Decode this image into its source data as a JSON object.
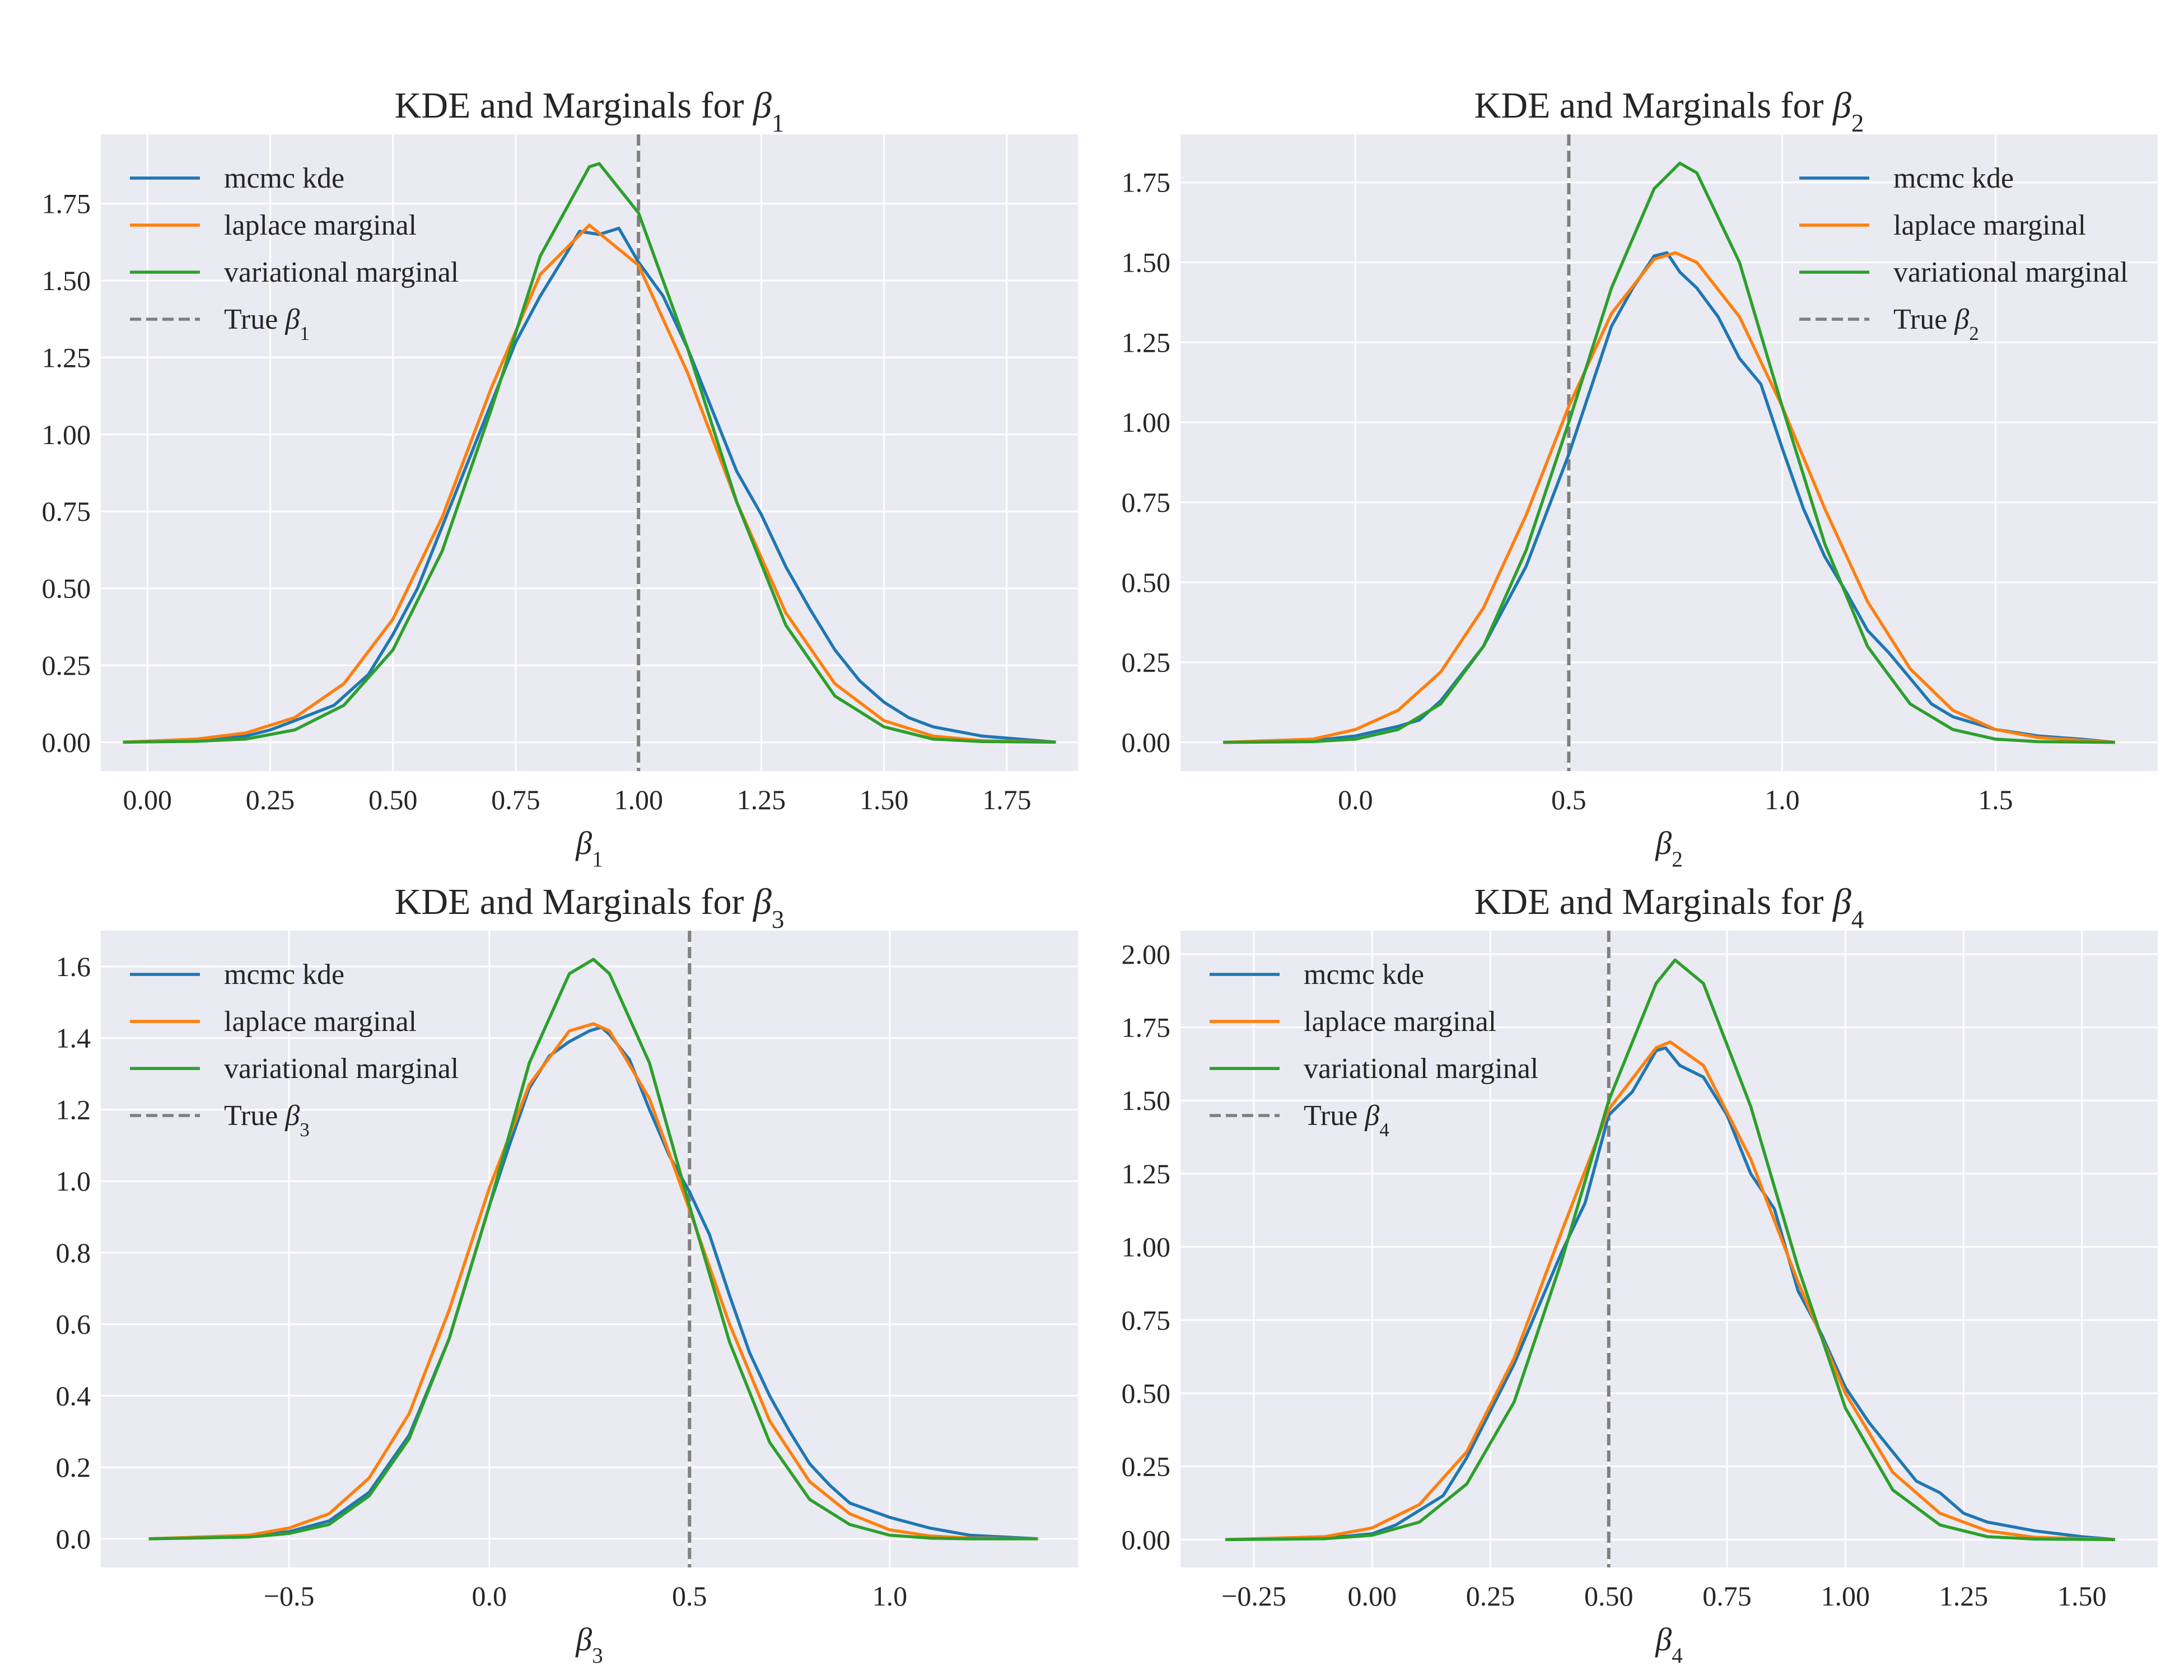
{
  "figure": {
    "background": "#ffffff",
    "axes_facecolor": "#eaeaf2",
    "grid_color": "#ffffff"
  },
  "chart_data": [
    {
      "type": "line",
      "title": "KDE and Marginals for β1",
      "title_parts": {
        "prefix": "KDE and Marginals for ",
        "symbol": "β",
        "subscript": "1"
      },
      "xlabel": "β1",
      "xlabel_parts": {
        "symbol": "β",
        "subscript": "1"
      },
      "ylabel": "",
      "xlim": [
        -0.095,
        1.895
      ],
      "ylim": [
        -0.094,
        1.975
      ],
      "xticks": [
        0.0,
        0.25,
        0.5,
        0.75,
        1.0,
        1.25,
        1.5,
        1.75
      ],
      "xtick_labels": [
        "0.00",
        "0.25",
        "0.50",
        "0.75",
        "1.00",
        "1.25",
        "1.50",
        "1.75"
      ],
      "yticks": [
        0.0,
        0.25,
        0.5,
        0.75,
        1.0,
        1.25,
        1.5,
        1.75
      ],
      "ytick_labels": [
        "0.00",
        "0.25",
        "0.50",
        "0.75",
        "1.00",
        "1.25",
        "1.50",
        "1.75"
      ],
      "grid": true,
      "legend_position": "upper left",
      "true_value": 1.0,
      "true_label": "True β1",
      "true_label_parts": {
        "prefix": "True ",
        "symbol": "β",
        "subscript": "1"
      },
      "series": [
        {
          "name": "mcmc kde",
          "color": "#1f77b4",
          "x": [
            -0.05,
            0.1,
            0.2,
            0.25,
            0.3,
            0.38,
            0.45,
            0.5,
            0.55,
            0.6,
            0.65,
            0.7,
            0.75,
            0.8,
            0.85,
            0.88,
            0.92,
            0.96,
            1.0,
            1.05,
            1.1,
            1.15,
            1.2,
            1.25,
            1.3,
            1.35,
            1.4,
            1.45,
            1.5,
            1.55,
            1.6,
            1.7,
            1.85
          ],
          "y": [
            0.0,
            0.005,
            0.02,
            0.04,
            0.07,
            0.12,
            0.22,
            0.35,
            0.5,
            0.7,
            0.9,
            1.1,
            1.3,
            1.45,
            1.58,
            1.66,
            1.65,
            1.67,
            1.56,
            1.45,
            1.28,
            1.08,
            0.88,
            0.74,
            0.57,
            0.43,
            0.3,
            0.2,
            0.13,
            0.08,
            0.05,
            0.02,
            0.0
          ]
        },
        {
          "name": "laplace marginal",
          "color": "#ff7f0e",
          "x": [
            -0.05,
            0.1,
            0.2,
            0.3,
            0.4,
            0.5,
            0.6,
            0.7,
            0.8,
            0.9,
            1.0,
            1.1,
            1.2,
            1.3,
            1.4,
            1.5,
            1.6,
            1.7,
            1.85
          ],
          "y": [
            0.0,
            0.01,
            0.03,
            0.08,
            0.19,
            0.4,
            0.73,
            1.15,
            1.52,
            1.68,
            1.55,
            1.2,
            0.78,
            0.42,
            0.19,
            0.07,
            0.02,
            0.005,
            0.0
          ]
        },
        {
          "name": "variational marginal",
          "color": "#2ca02c",
          "x": [
            -0.05,
            0.1,
            0.2,
            0.3,
            0.4,
            0.5,
            0.6,
            0.7,
            0.8,
            0.9,
            0.92,
            1.0,
            1.1,
            1.2,
            1.3,
            1.4,
            1.5,
            1.6,
            1.7,
            1.85
          ],
          "y": [
            0.0,
            0.003,
            0.01,
            0.04,
            0.12,
            0.3,
            0.62,
            1.08,
            1.58,
            1.87,
            1.88,
            1.72,
            1.28,
            0.78,
            0.38,
            0.15,
            0.05,
            0.01,
            0.002,
            0.0
          ]
        }
      ]
    },
    {
      "type": "line",
      "title": "KDE and Marginals for β2",
      "title_parts": {
        "prefix": "KDE and Marginals for ",
        "symbol": "β",
        "subscript": "2"
      },
      "xlabel": "β2",
      "xlabel_parts": {
        "symbol": "β",
        "subscript": "2"
      },
      "ylabel": "",
      "xlim": [
        -0.41,
        1.88
      ],
      "ylim": [
        -0.09,
        1.9
      ],
      "xticks": [
        0.0,
        0.5,
        1.0,
        1.5
      ],
      "xtick_labels": [
        "0.0",
        "0.5",
        "1.0",
        "1.5"
      ],
      "yticks": [
        0.0,
        0.25,
        0.5,
        0.75,
        1.0,
        1.25,
        1.5,
        1.75
      ],
      "ytick_labels": [
        "0.00",
        "0.25",
        "0.50",
        "0.75",
        "1.00",
        "1.25",
        "1.50",
        "1.75"
      ],
      "grid": true,
      "legend_position": "upper right",
      "true_value": 0.5,
      "true_label": "True β2",
      "true_label_parts": {
        "prefix": "True ",
        "symbol": "β",
        "subscript": "2"
      },
      "series": [
        {
          "name": "mcmc kde",
          "color": "#1f77b4",
          "x": [
            -0.31,
            -0.1,
            0.0,
            0.1,
            0.15,
            0.2,
            0.3,
            0.4,
            0.5,
            0.55,
            0.6,
            0.65,
            0.7,
            0.73,
            0.76,
            0.8,
            0.85,
            0.9,
            0.95,
            1.0,
            1.05,
            1.1,
            1.15,
            1.2,
            1.25,
            1.3,
            1.35,
            1.4,
            1.45,
            1.5,
            1.55,
            1.6,
            1.7,
            1.78
          ],
          "y": [
            0.0,
            0.005,
            0.02,
            0.05,
            0.07,
            0.13,
            0.3,
            0.55,
            0.9,
            1.1,
            1.3,
            1.42,
            1.52,
            1.53,
            1.47,
            1.42,
            1.33,
            1.2,
            1.12,
            0.92,
            0.73,
            0.58,
            0.47,
            0.35,
            0.28,
            0.2,
            0.12,
            0.08,
            0.06,
            0.04,
            0.03,
            0.02,
            0.01,
            0.0
          ]
        },
        {
          "name": "laplace marginal",
          "color": "#ff7f0e",
          "x": [
            -0.31,
            -0.1,
            0.0,
            0.1,
            0.2,
            0.3,
            0.4,
            0.5,
            0.6,
            0.7,
            0.75,
            0.8,
            0.9,
            1.0,
            1.1,
            1.2,
            1.3,
            1.4,
            1.5,
            1.6,
            1.78
          ],
          "y": [
            0.0,
            0.01,
            0.04,
            0.1,
            0.22,
            0.42,
            0.71,
            1.05,
            1.34,
            1.51,
            1.53,
            1.5,
            1.33,
            1.05,
            0.73,
            0.44,
            0.23,
            0.1,
            0.04,
            0.015,
            0.0
          ]
        },
        {
          "name": "variational marginal",
          "color": "#2ca02c",
          "x": [
            -0.31,
            -0.1,
            0.0,
            0.1,
            0.2,
            0.3,
            0.4,
            0.5,
            0.6,
            0.7,
            0.76,
            0.8,
            0.9,
            1.0,
            1.1,
            1.2,
            1.3,
            1.4,
            1.5,
            1.6,
            1.78
          ],
          "y": [
            0.0,
            0.002,
            0.01,
            0.04,
            0.12,
            0.3,
            0.6,
            1.0,
            1.42,
            1.73,
            1.81,
            1.78,
            1.5,
            1.05,
            0.62,
            0.3,
            0.12,
            0.04,
            0.01,
            0.002,
            0.0
          ]
        }
      ]
    },
    {
      "type": "line",
      "title": "KDE and Marginals for β3",
      "title_parts": {
        "prefix": "KDE and Marginals for ",
        "symbol": "β",
        "subscript": "3"
      },
      "xlabel": "β3",
      "xlabel_parts": {
        "symbol": "β",
        "subscript": "3"
      },
      "ylabel": "",
      "xlim": [
        -0.97,
        1.47
      ],
      "ylim": [
        -0.08,
        1.7
      ],
      "xticks": [
        -0.5,
        0.0,
        0.5,
        1.0
      ],
      "xtick_labels": [
        "−0.5",
        "0.0",
        "0.5",
        "1.0"
      ],
      "yticks": [
        0.0,
        0.2,
        0.4,
        0.6,
        0.8,
        1.0,
        1.2,
        1.4,
        1.6
      ],
      "ytick_labels": [
        "0.0",
        "0.2",
        "0.4",
        "0.6",
        "0.8",
        "1.0",
        "1.2",
        "1.4",
        "1.6"
      ],
      "grid": true,
      "legend_position": "upper left",
      "true_value": 0.5,
      "true_label": "True β3",
      "true_label_parts": {
        "prefix": "True ",
        "symbol": "β",
        "subscript": "3"
      },
      "series": [
        {
          "name": "mcmc kde",
          "color": "#1f77b4",
          "x": [
            -0.85,
            -0.6,
            -0.5,
            -0.4,
            -0.3,
            -0.2,
            -0.1,
            0.0,
            0.05,
            0.1,
            0.15,
            0.2,
            0.25,
            0.28,
            0.3,
            0.35,
            0.4,
            0.45,
            0.5,
            0.55,
            0.6,
            0.65,
            0.7,
            0.75,
            0.8,
            0.85,
            0.9,
            0.95,
            1.0,
            1.1,
            1.2,
            1.37
          ],
          "y": [
            0.0,
            0.008,
            0.02,
            0.05,
            0.13,
            0.29,
            0.56,
            0.93,
            1.1,
            1.26,
            1.35,
            1.39,
            1.42,
            1.43,
            1.41,
            1.34,
            1.2,
            1.07,
            0.97,
            0.85,
            0.68,
            0.52,
            0.4,
            0.3,
            0.21,
            0.15,
            0.1,
            0.08,
            0.06,
            0.03,
            0.01,
            0.0
          ]
        },
        {
          "name": "laplace marginal",
          "color": "#ff7f0e",
          "x": [
            -0.85,
            -0.6,
            -0.5,
            -0.4,
            -0.3,
            -0.2,
            -0.1,
            0.0,
            0.1,
            0.2,
            0.26,
            0.3,
            0.4,
            0.5,
            0.6,
            0.7,
            0.8,
            0.9,
            1.0,
            1.1,
            1.2,
            1.37
          ],
          "y": [
            0.0,
            0.01,
            0.03,
            0.07,
            0.17,
            0.35,
            0.64,
            0.98,
            1.27,
            1.42,
            1.44,
            1.42,
            1.23,
            0.92,
            0.6,
            0.33,
            0.16,
            0.07,
            0.025,
            0.008,
            0.002,
            0.0
          ]
        },
        {
          "name": "variational marginal",
          "color": "#2ca02c",
          "x": [
            -0.85,
            -0.6,
            -0.5,
            -0.4,
            -0.3,
            -0.2,
            -0.1,
            0.0,
            0.1,
            0.2,
            0.26,
            0.3,
            0.4,
            0.5,
            0.6,
            0.7,
            0.8,
            0.9,
            1.0,
            1.1,
            1.2,
            1.37
          ],
          "y": [
            0.0,
            0.005,
            0.015,
            0.04,
            0.12,
            0.28,
            0.56,
            0.93,
            1.33,
            1.58,
            1.62,
            1.58,
            1.33,
            0.93,
            0.55,
            0.27,
            0.11,
            0.04,
            0.01,
            0.002,
            0.0,
            0.0
          ]
        }
      ]
    },
    {
      "type": "line",
      "title": "KDE and Marginals for β4",
      "title_parts": {
        "prefix": "KDE and Marginals for ",
        "symbol": "β",
        "subscript": "4"
      },
      "xlabel": "β4",
      "xlabel_parts": {
        "symbol": "β",
        "subscript": "4"
      },
      "ylabel": "",
      "xlim": [
        -0.405,
        1.66
      ],
      "ylim": [
        -0.095,
        2.08
      ],
      "xticks": [
        -0.25,
        0.0,
        0.25,
        0.5,
        0.75,
        1.0,
        1.25,
        1.5
      ],
      "xtick_labels": [
        "−0.25",
        "0.00",
        "0.25",
        "0.50",
        "0.75",
        "1.00",
        "1.25",
        "1.50"
      ],
      "yticks": [
        0.0,
        0.25,
        0.5,
        0.75,
        1.0,
        1.25,
        1.5,
        1.75,
        2.0
      ],
      "ytick_labels": [
        "0.00",
        "0.25",
        "0.50",
        "0.75",
        "1.00",
        "1.25",
        "1.50",
        "1.75",
        "2.00"
      ],
      "grid": true,
      "legend_position": "upper left",
      "true_value": 0.5,
      "true_label": "True β4",
      "true_label_parts": {
        "prefix": "True ",
        "symbol": "β",
        "subscript": "4"
      },
      "series": [
        {
          "name": "mcmc kde",
          "color": "#1f77b4",
          "x": [
            -0.31,
            -0.1,
            0.0,
            0.05,
            0.1,
            0.15,
            0.2,
            0.3,
            0.4,
            0.45,
            0.5,
            0.55,
            0.6,
            0.62,
            0.65,
            0.7,
            0.75,
            0.8,
            0.85,
            0.9,
            0.95,
            1.0,
            1.05,
            1.1,
            1.15,
            1.2,
            1.25,
            1.3,
            1.4,
            1.5,
            1.57
          ],
          "y": [
            0.0,
            0.005,
            0.02,
            0.05,
            0.1,
            0.15,
            0.28,
            0.6,
            0.98,
            1.15,
            1.45,
            1.53,
            1.67,
            1.68,
            1.62,
            1.58,
            1.45,
            1.25,
            1.13,
            0.85,
            0.7,
            0.52,
            0.4,
            0.3,
            0.2,
            0.16,
            0.09,
            0.06,
            0.03,
            0.01,
            0.0
          ]
        },
        {
          "name": "laplace marginal",
          "color": "#ff7f0e",
          "x": [
            -0.31,
            -0.1,
            0.0,
            0.1,
            0.2,
            0.3,
            0.4,
            0.5,
            0.6,
            0.63,
            0.7,
            0.8,
            0.9,
            1.0,
            1.1,
            1.2,
            1.3,
            1.4,
            1.57
          ],
          "y": [
            0.0,
            0.01,
            0.04,
            0.12,
            0.3,
            0.62,
            1.05,
            1.47,
            1.68,
            1.7,
            1.62,
            1.3,
            0.88,
            0.5,
            0.23,
            0.09,
            0.03,
            0.008,
            0.0
          ]
        },
        {
          "name": "variational marginal",
          "color": "#2ca02c",
          "x": [
            -0.31,
            -0.1,
            0.0,
            0.1,
            0.2,
            0.3,
            0.4,
            0.5,
            0.6,
            0.64,
            0.7,
            0.8,
            0.9,
            1.0,
            1.1,
            1.2,
            1.3,
            1.4,
            1.57
          ],
          "y": [
            0.0,
            0.003,
            0.015,
            0.06,
            0.19,
            0.47,
            0.95,
            1.5,
            1.9,
            1.98,
            1.9,
            1.48,
            0.93,
            0.45,
            0.17,
            0.05,
            0.01,
            0.002,
            0.0
          ]
        }
      ]
    }
  ]
}
